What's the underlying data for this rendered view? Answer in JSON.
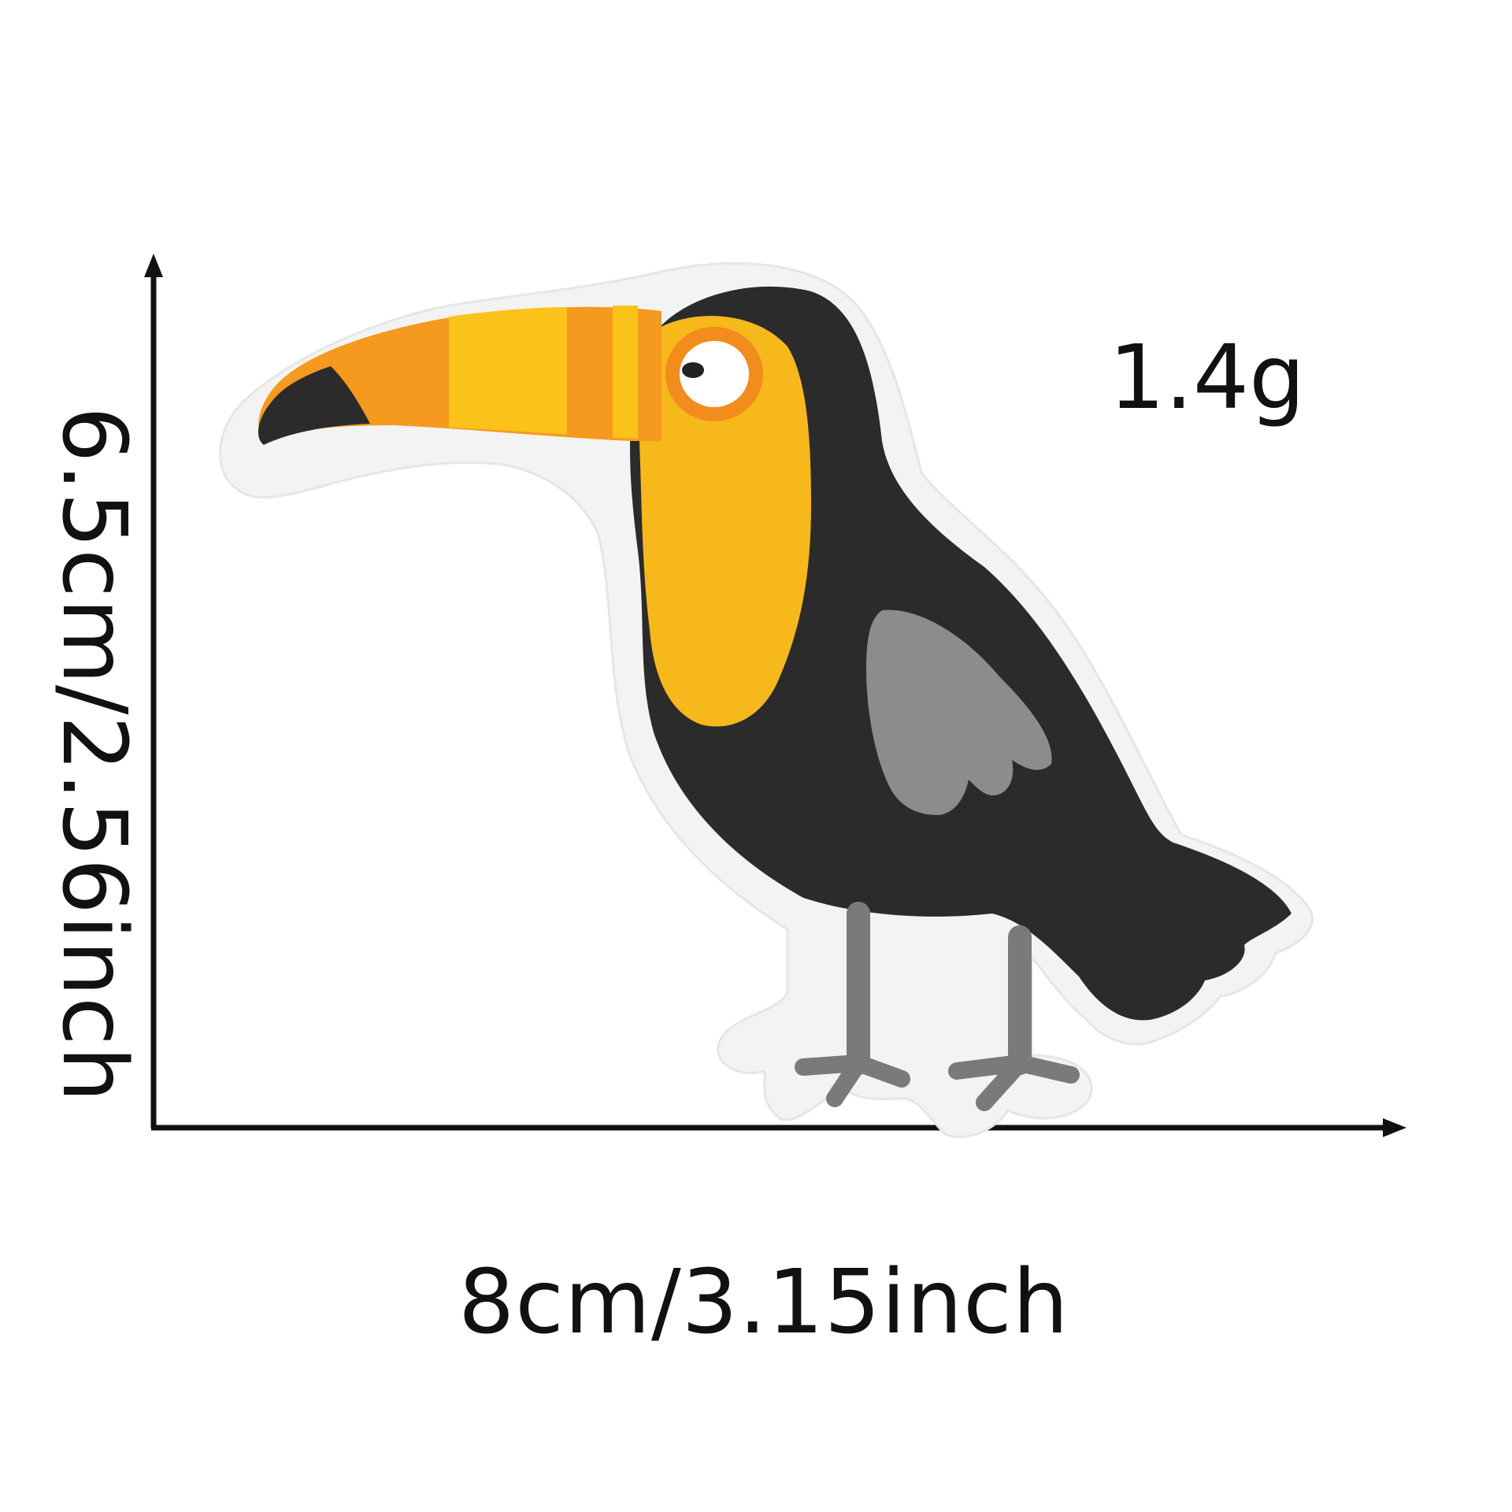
{
  "product": {
    "weight_label": "1.4g",
    "width_label": "8cm/3.15inch",
    "height_label": "6.5cm/2.56inch"
  },
  "colors": {
    "background": "#ffffff",
    "patch_border": "#f4f4f4",
    "body": "#2b2b2b",
    "face_yellow": "#f7b81c",
    "beak_orange": "#f59a1e",
    "beak_yellow": "#fbc21a",
    "beak_tip": "#2b2b2b",
    "wing_gray": "#8c8c8c",
    "legs_gray": "#7a7a7a",
    "eye_ring": "#f28c1c",
    "dimension_lines": "#111111"
  },
  "icons": {
    "illustration": "toucan-patch-icon"
  }
}
